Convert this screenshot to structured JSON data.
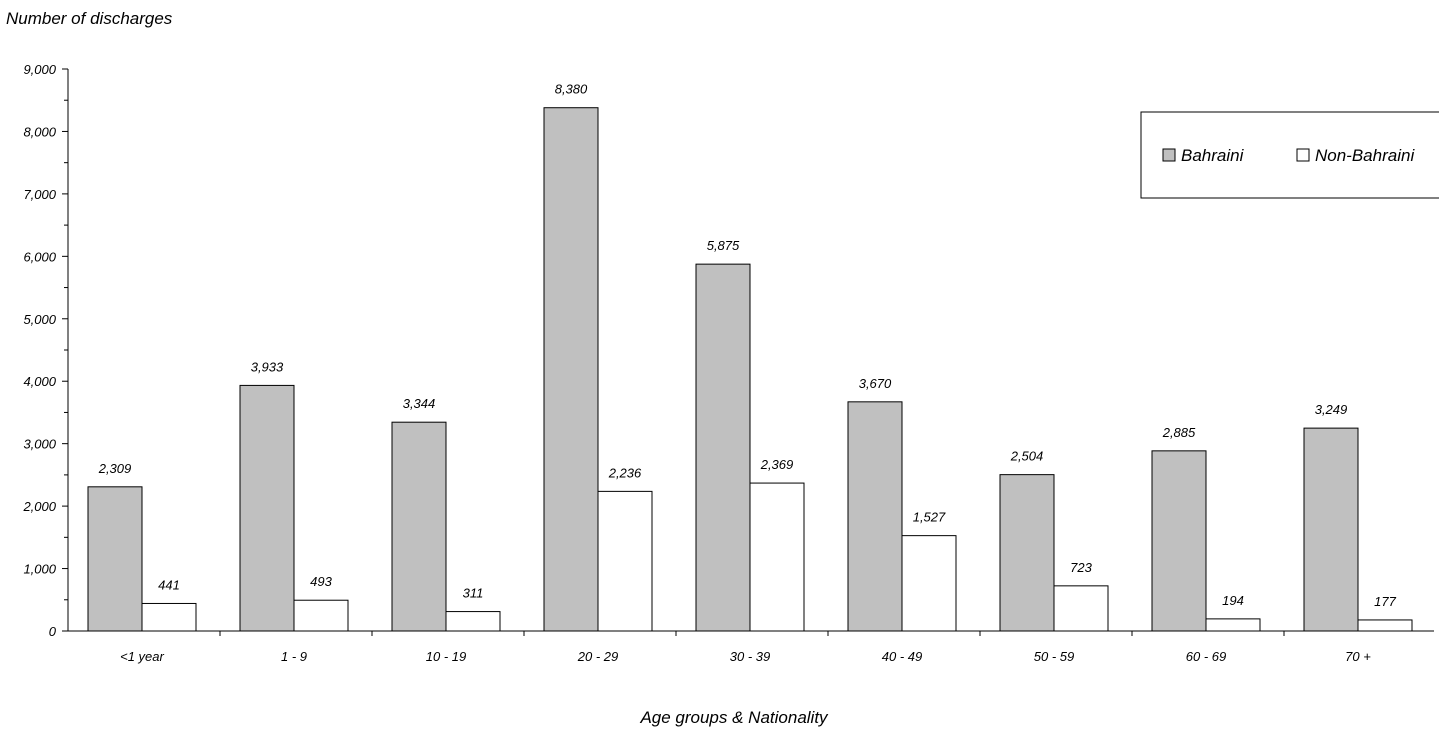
{
  "chart_data": {
    "type": "bar",
    "title": "",
    "ylabel": "Number of discharges",
    "xlabel": "Age groups & Nationality",
    "categories": [
      "<1 year",
      "1 - 9",
      "10 - 19",
      "20 - 29",
      "30 - 39",
      "40 - 49",
      "50 - 59",
      "60 - 69",
      "70 +"
    ],
    "series": [
      {
        "name": "Bahraini",
        "color": "#c0c0c0",
        "values": [
          2309,
          3933,
          3344,
          8380,
          5875,
          3670,
          2504,
          2885,
          3249
        ]
      },
      {
        "name": "Non-Bahraini",
        "color": "#ffffff",
        "values": [
          441,
          493,
          311,
          2236,
          2369,
          1527,
          723,
          194,
          177
        ]
      }
    ],
    "ylim": [
      0,
      9000
    ],
    "yticks": [
      0,
      1000,
      2000,
      3000,
      4000,
      5000,
      6000,
      7000,
      8000,
      9000
    ],
    "ytick_labels": [
      "0",
      "1,000",
      "2,000",
      "3,000",
      "4,000",
      "5,000",
      "6,000",
      "7,000",
      "8,000",
      "9,000"
    ],
    "data_labels": [
      [
        "2,309",
        "3,933",
        "3,344",
        "8,380",
        "5,875",
        "3,670",
        "2,504",
        "2,885",
        "3,249"
      ],
      [
        "441",
        "493",
        "311",
        "2,236",
        "2,369",
        "1,527",
        "723",
        "194",
        "177"
      ]
    ],
    "grid": false,
    "legend_position": "top-right"
  }
}
